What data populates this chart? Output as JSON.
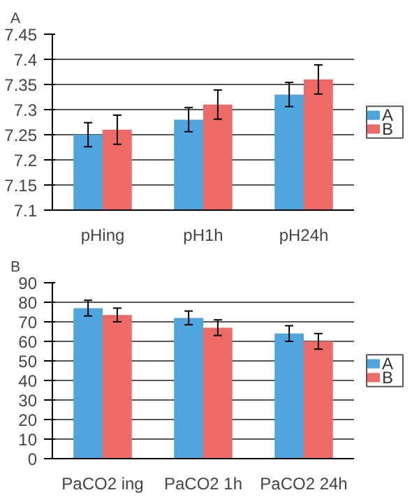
{
  "chart_data": [
    {
      "type": "bar",
      "title": "A",
      "categories": [
        "pHing",
        "pH1h",
        "pH24h"
      ],
      "series": [
        {
          "name": "A",
          "color": "#4ea6dc",
          "values": [
            7.25,
            7.28,
            7.33
          ],
          "errors": [
            0.024,
            0.024,
            0.024
          ]
        },
        {
          "name": "B",
          "color": "#ee6a66",
          "values": [
            7.26,
            7.31,
            7.36
          ],
          "errors": [
            0.029,
            0.029,
            0.029
          ]
        }
      ],
      "ylim": [
        7.1,
        7.45
      ],
      "yticks": [
        7.1,
        7.15,
        7.2,
        7.25,
        7.3,
        7.35,
        7.4,
        7.45
      ],
      "grid": "y",
      "legend": "right"
    },
    {
      "type": "bar",
      "title": "B",
      "categories": [
        "PaCO2 ing",
        "PaCO2 1h",
        "PaCO2 24h"
      ],
      "series": [
        {
          "name": "A",
          "color": "#4ea6dc",
          "values": [
            77,
            72,
            64
          ],
          "errors": [
            4,
            3.5,
            4
          ]
        },
        {
          "name": "B",
          "color": "#ee6a66",
          "values": [
            73.5,
            67,
            60
          ],
          "errors": [
            3.5,
            4,
            4
          ]
        }
      ],
      "ylim": [
        0,
        90
      ],
      "yticks": [
        0,
        10,
        20,
        30,
        40,
        50,
        60,
        70,
        80,
        90
      ],
      "grid": "y",
      "legend": "right"
    }
  ]
}
